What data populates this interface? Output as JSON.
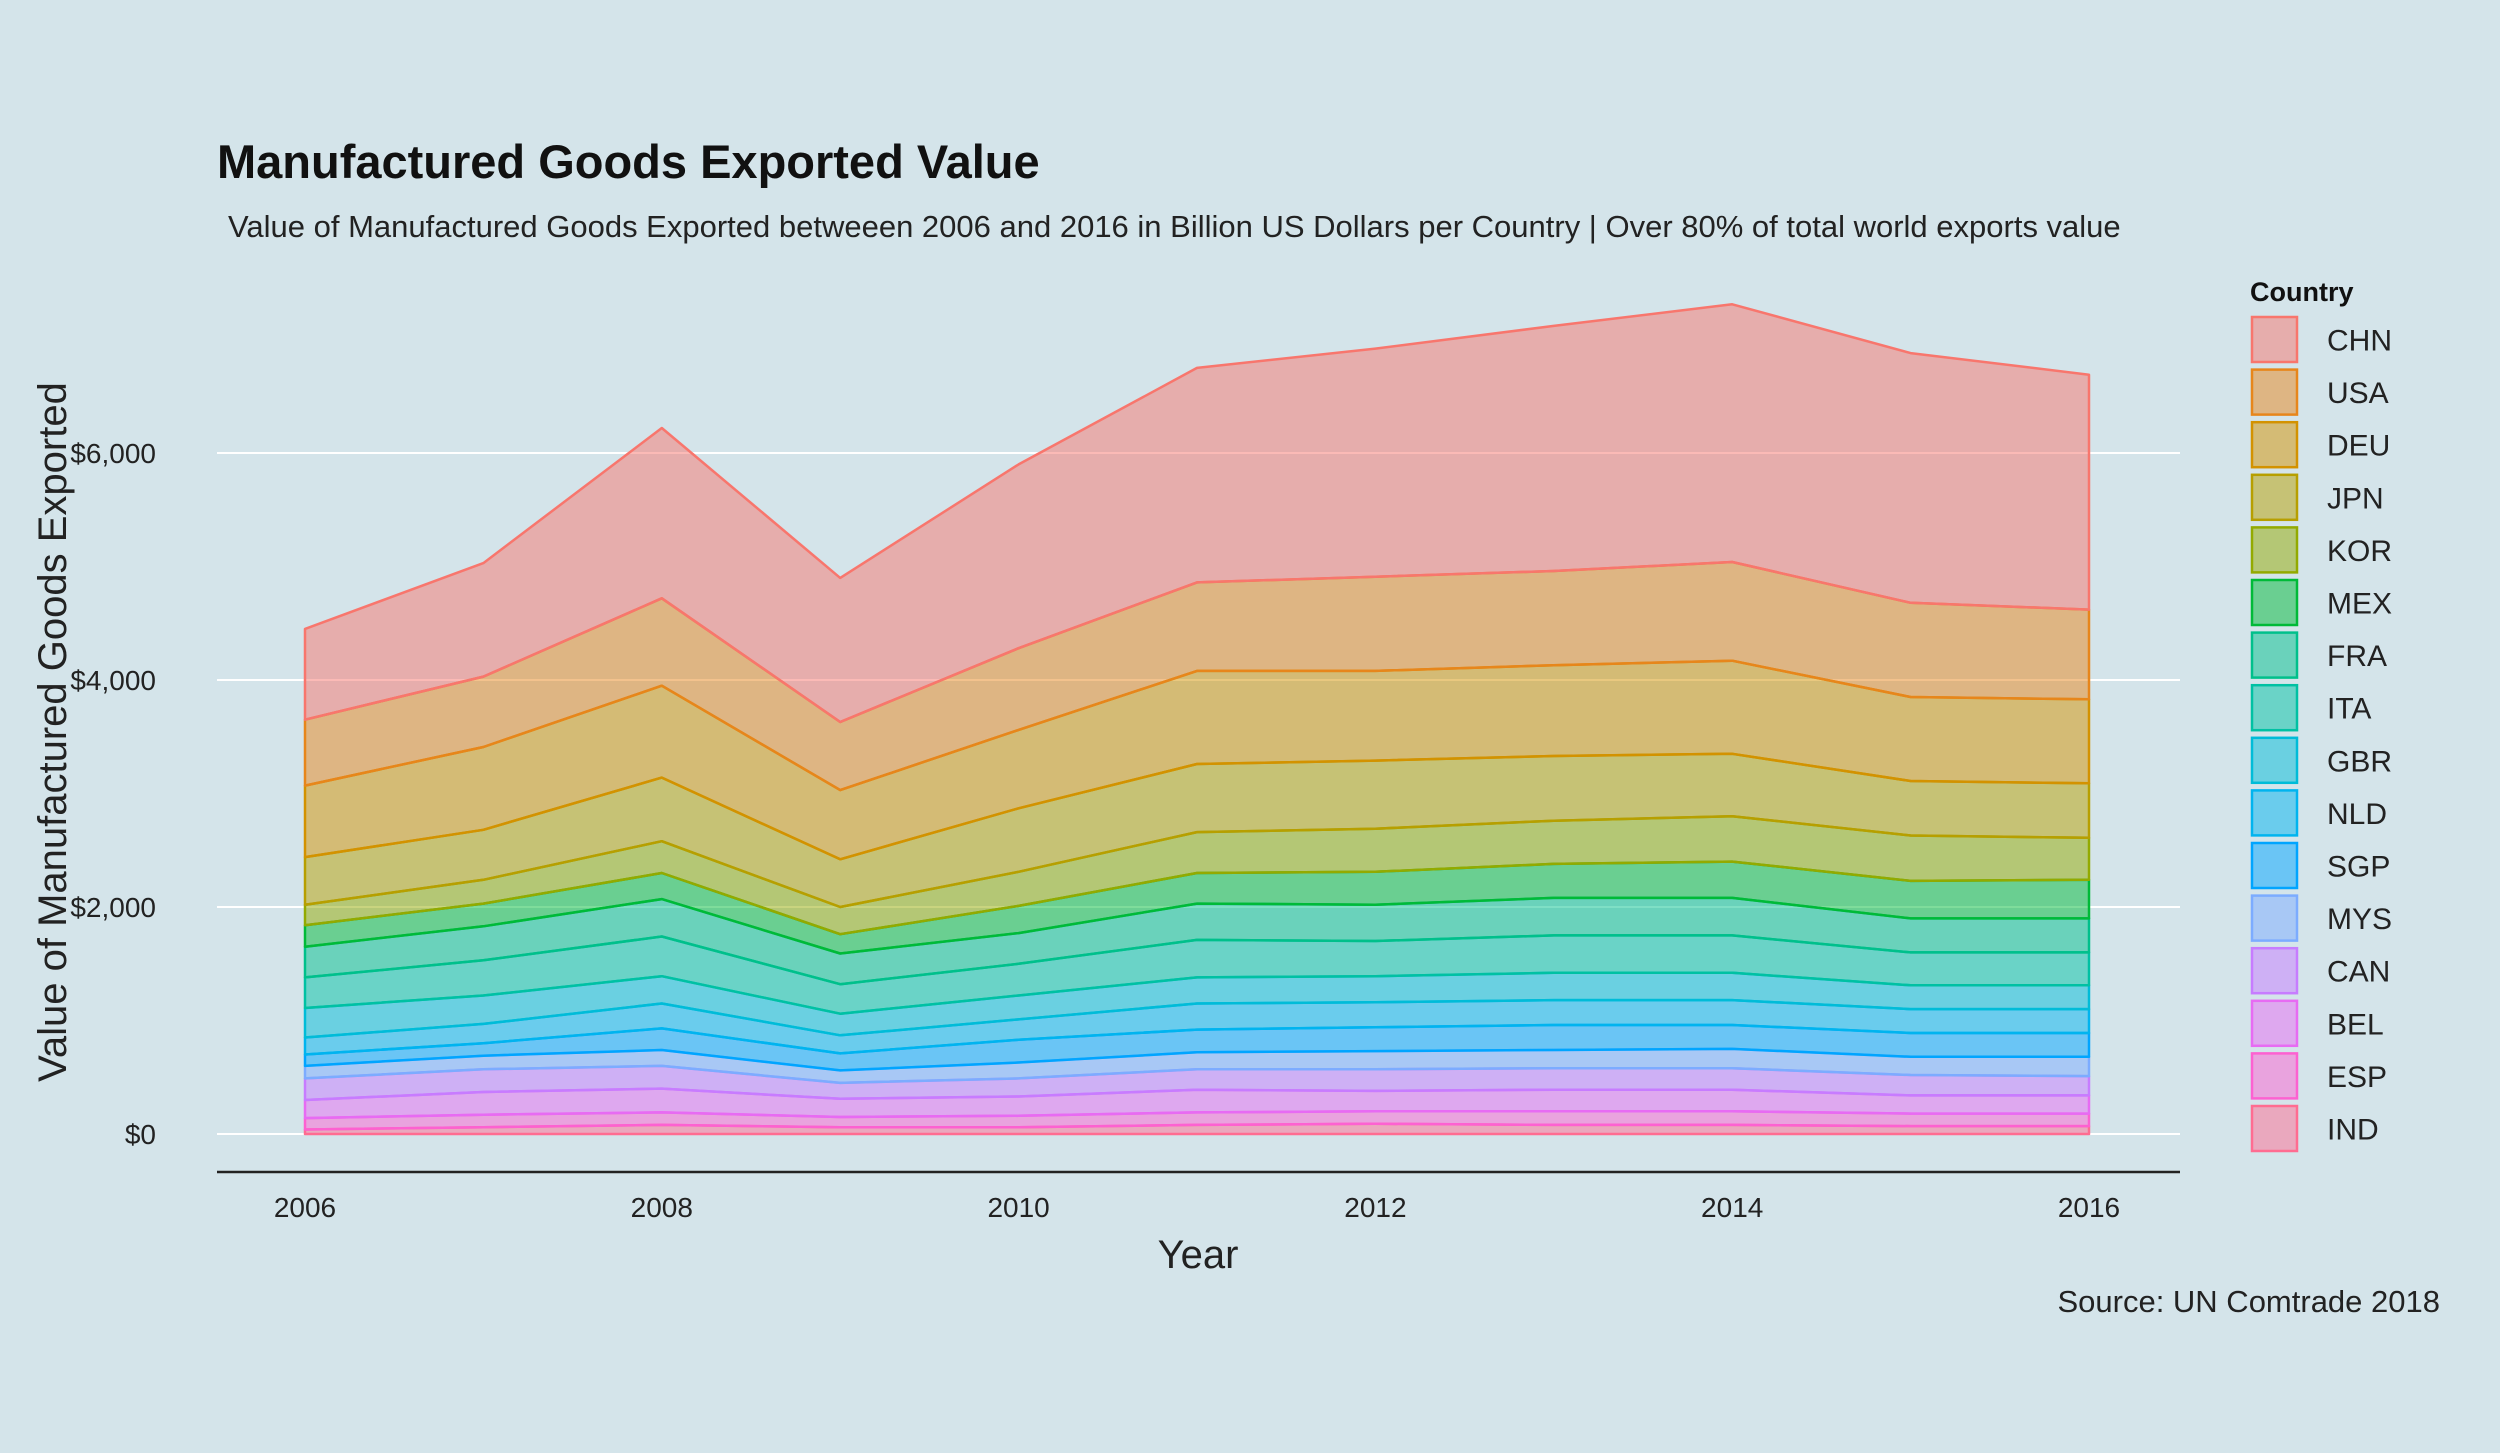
{
  "chart_data": {
    "type": "area",
    "stacked": true,
    "title": "Manufactured Goods Exported Value",
    "subtitle": "Value of Manufactured Goods Exported betweeen 2006 and 2016 in Billion US Dollars per Country | Over 80% of total world exports value",
    "xlabel": "Year",
    "ylabel": "Value of Manufactured Goods Exported",
    "caption": "Source: UN Comtrade 2018",
    "legend_title": "Country",
    "legend_position": "right",
    "grid": "horizontal major only",
    "xlim": [
      2006,
      2016
    ],
    "ylim": [
      0,
      7400
    ],
    "x": [
      2006,
      2007,
      2008,
      2009,
      2010,
      2011,
      2012,
      2013,
      2014,
      2015,
      2016
    ],
    "x_ticks": [
      {
        "value": 2006,
        "label": "2006"
      },
      {
        "value": 2008,
        "label": "2008"
      },
      {
        "value": 2010,
        "label": "2010"
      },
      {
        "value": 2012,
        "label": "2012"
      },
      {
        "value": 2014,
        "label": "2014"
      },
      {
        "value": 2016,
        "label": "2016"
      }
    ],
    "y_ticks": [
      {
        "value": 0,
        "label": "$0"
      },
      {
        "value": 2000,
        "label": "$2,000"
      },
      {
        "value": 4000,
        "label": "$4,000"
      },
      {
        "value": 6000,
        "label": "$6,000"
      }
    ],
    "series": [
      {
        "name": "CHN",
        "color": "#f8766d",
        "values": [
          800,
          1000,
          1500,
          1270,
          1620,
          1890,
          2010,
          2160,
          2270,
          2200,
          2070
        ]
      },
      {
        "name": "USA",
        "color": "#e7861b",
        "values": [
          580,
          620,
          770,
          600,
          720,
          780,
          830,
          830,
          870,
          830,
          790
        ]
      },
      {
        "name": "DEU",
        "color": "#d39200",
        "values": [
          630,
          730,
          810,
          610,
          690,
          820,
          790,
          800,
          820,
          740,
          740
        ]
      },
      {
        "name": "JPN",
        "color": "#b79f00",
        "values": [
          420,
          440,
          560,
          420,
          560,
          600,
          600,
          570,
          550,
          480,
          480
        ]
      },
      {
        "name": "KOR",
        "color": "#93aa00",
        "values": [
          180,
          210,
          280,
          240,
          300,
          360,
          380,
          380,
          400,
          400,
          370
        ]
      },
      {
        "name": "MEX",
        "color": "#00ba38",
        "values": [
          190,
          200,
          230,
          170,
          240,
          270,
          290,
          300,
          320,
          330,
          340
        ]
      },
      {
        "name": "FRA",
        "color": "#00c08b",
        "values": [
          270,
          300,
          330,
          270,
          270,
          320,
          320,
          330,
          330,
          300,
          300
        ]
      },
      {
        "name": "ITA",
        "color": "#00c1a3",
        "values": [
          270,
          310,
          350,
          260,
          280,
          330,
          310,
          330,
          330,
          290,
          290
        ]
      },
      {
        "name": "GBR",
        "color": "#00bcd8",
        "values": [
          260,
          250,
          240,
          190,
          210,
          230,
          230,
          240,
          240,
          210,
          210
        ]
      },
      {
        "name": "NLD",
        "color": "#00b4ef",
        "values": [
          150,
          170,
          220,
          160,
          180,
          230,
          220,
          220,
          220,
          210,
          210
        ]
      },
      {
        "name": "SGP",
        "color": "#00a5ff",
        "values": [
          100,
          110,
          190,
          150,
          200,
          200,
          210,
          220,
          210,
          210,
          210
        ]
      },
      {
        "name": "MYS",
        "color": "#7cacff",
        "values": [
          110,
          120,
          140,
          110,
          140,
          150,
          160,
          160,
          170,
          160,
          170
        ]
      },
      {
        "name": "CAN",
        "color": "#c77cff",
        "values": [
          190,
          200,
          200,
          140,
          160,
          180,
          190,
          190,
          190,
          180,
          170
        ]
      },
      {
        "name": "BEL",
        "color": "#e76bf3",
        "values": [
          160,
          200,
          210,
          160,
          170,
          200,
          180,
          190,
          190,
          160,
          160
        ]
      },
      {
        "name": "ESP",
        "color": "#fd61d1",
        "values": [
          100,
          110,
          110,
          90,
          100,
          110,
          110,
          120,
          120,
          110,
          110
        ]
      },
      {
        "name": "IND",
        "color": "#ff6c91",
        "values": [
          40,
          60,
          80,
          60,
          60,
          80,
          90,
          80,
          80,
          70,
          70
        ]
      }
    ]
  }
}
